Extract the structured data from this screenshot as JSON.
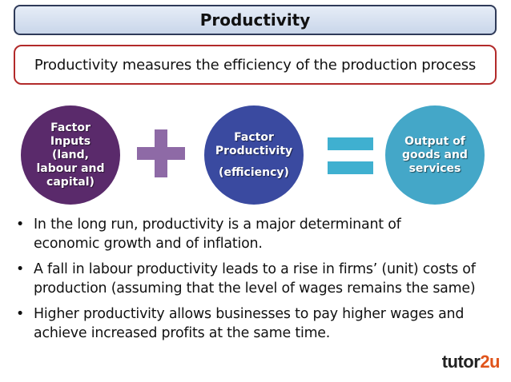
{
  "title": "Productivity",
  "definition": "Productivity measures the efficiency of the production process",
  "diagram": {
    "circle1": {
      "lines": [
        "Factor",
        "Inputs",
        "(land,",
        "labour and",
        "capital)"
      ],
      "color": "#5a2a6b"
    },
    "operator1": "plus-icon",
    "circle2": {
      "lines": [
        "Factor",
        "Productivity",
        "(efficiency)"
      ],
      "color": "#3a4aa0"
    },
    "operator2": "equals-icon",
    "circle3": {
      "lines": [
        "Output of",
        "goods and",
        "services"
      ],
      "color": "#44a7c8"
    }
  },
  "bullets": [
    {
      "line1": "In the long run, productivity is a major determinant of",
      "line2": "economic growth and of inflation."
    },
    {
      "line1": "A fall in labour productivity leads to a rise in firms’ (unit) costs of",
      "line2": "production (assuming that the level of wages remains the same)"
    },
    {
      "line1": "Higher productivity allows businesses to pay higher wages and",
      "line2": "achieve increased profits at the same time."
    }
  ],
  "logo": {
    "text_main": "tutor",
    "text_accent": "2u"
  }
}
